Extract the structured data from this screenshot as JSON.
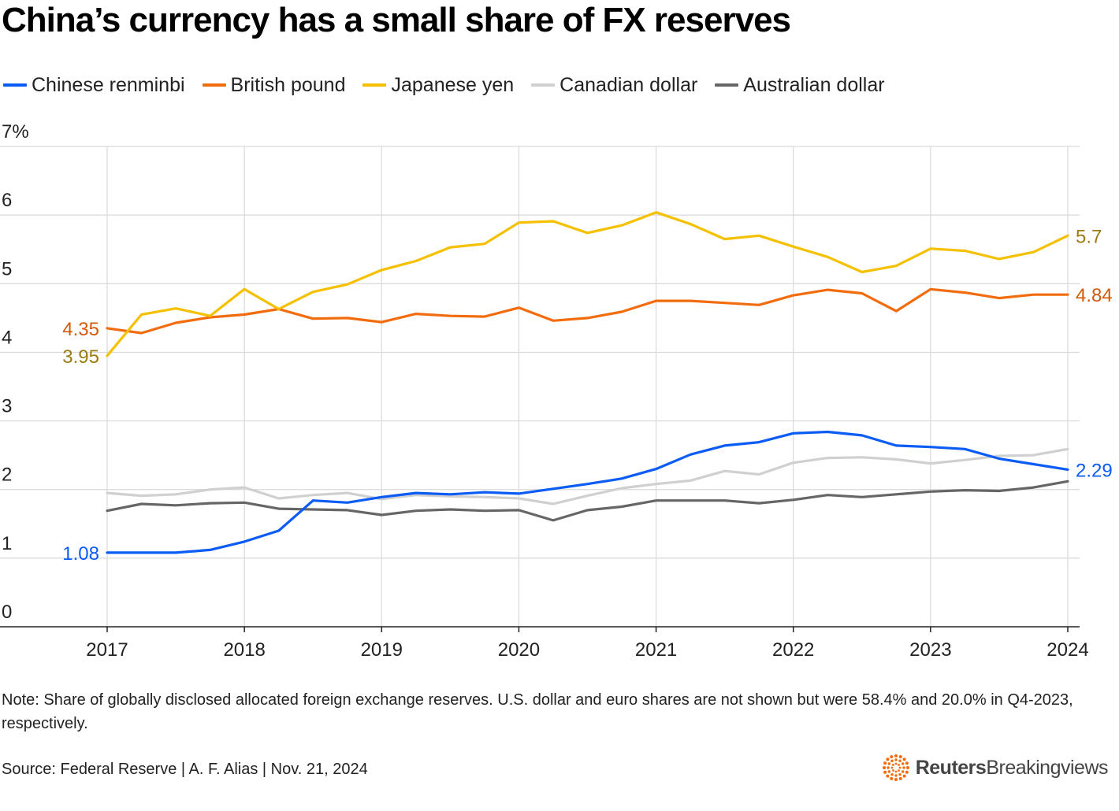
{
  "title": "China’s currency has a small share of FX reserves",
  "legend": [
    {
      "name": "Chinese renminbi",
      "color": "#0a5cf5"
    },
    {
      "name": "British pound",
      "color": "#f26c0d"
    },
    {
      "name": "Japanese yen",
      "color": "#f5c000"
    },
    {
      "name": "Canadian dollar",
      "color": "#d0d0d0"
    },
    {
      "name": "Australian dollar",
      "color": "#666666"
    }
  ],
  "chart_data": {
    "type": "line",
    "title": "China’s currency has a small share of FX reserves",
    "xlabel": "",
    "ylabel": "",
    "y_unit_label": "7%",
    "x_start": 2017,
    "x_step": 0.25,
    "xlim": [
      2017,
      2024
    ],
    "ylim": [
      0,
      7
    ],
    "x_ticks": [
      "2017",
      "2018",
      "2019",
      "2020",
      "2021",
      "2022",
      "2023",
      "2024"
    ],
    "y_ticks": [
      "0",
      "1",
      "2",
      "3",
      "4",
      "5",
      "6"
    ],
    "grid": true,
    "legend_position": "top-left",
    "series": [
      {
        "name": "Canadian dollar",
        "color": "#d0d0d0",
        "values": [
          1.95,
          1.91,
          1.93,
          2.0,
          2.03,
          1.87,
          1.92,
          1.95,
          1.86,
          1.92,
          1.9,
          1.89,
          1.87,
          1.79,
          1.91,
          2.02,
          2.08,
          2.13,
          2.27,
          2.22,
          2.39,
          2.46,
          2.47,
          2.44,
          2.38,
          2.43,
          2.49,
          2.5,
          2.59
        ]
      },
      {
        "name": "Australian dollar",
        "color": "#666666",
        "values": [
          1.69,
          1.79,
          1.77,
          1.8,
          1.81,
          1.72,
          1.71,
          1.7,
          1.63,
          1.69,
          1.71,
          1.69,
          1.7,
          1.55,
          1.7,
          1.75,
          1.84,
          1.84,
          1.84,
          1.8,
          1.85,
          1.92,
          1.89,
          1.93,
          1.97,
          1.99,
          1.98,
          2.03,
          2.12
        ]
      },
      {
        "name": "British pound",
        "color": "#f26c0d",
        "values": [
          4.35,
          4.28,
          4.43,
          4.51,
          4.55,
          4.63,
          4.49,
          4.5,
          4.44,
          4.56,
          4.53,
          4.52,
          4.65,
          4.46,
          4.5,
          4.59,
          4.75,
          4.75,
          4.72,
          4.69,
          4.83,
          4.91,
          4.86,
          4.6,
          4.92,
          4.87,
          4.79,
          4.84,
          4.84
        ]
      },
      {
        "name": "Japanese yen",
        "color": "#f5c000",
        "values": [
          3.95,
          4.55,
          4.64,
          4.53,
          4.92,
          4.63,
          4.88,
          4.99,
          5.2,
          5.33,
          5.53,
          5.58,
          5.89,
          5.91,
          5.74,
          5.85,
          6.04,
          5.87,
          5.65,
          5.7,
          5.54,
          5.39,
          5.17,
          5.26,
          5.51,
          5.48,
          5.36,
          5.46,
          5.7
        ]
      },
      {
        "name": "Chinese renminbi",
        "color": "#0a5cf5",
        "values": [
          1.08,
          1.08,
          1.08,
          1.12,
          1.24,
          1.4,
          1.84,
          1.81,
          1.89,
          1.95,
          1.93,
          1.96,
          1.94,
          2.01,
          2.08,
          2.16,
          2.3,
          2.51,
          2.64,
          2.69,
          2.82,
          2.84,
          2.79,
          2.64,
          2.62,
          2.59,
          2.45,
          2.37,
          2.29
        ]
      }
    ],
    "annotations": [
      {
        "series": "British pound",
        "position": "start",
        "text": "4.35",
        "color": "#d25a0a"
      },
      {
        "series": "Japanese yen",
        "position": "start",
        "text": "3.95",
        "color": "#9c7a12"
      },
      {
        "series": "Chinese renminbi",
        "position": "start",
        "text": "1.08",
        "color": "#0a5cf5"
      },
      {
        "series": "Japanese yen",
        "position": "end",
        "text": "5.7",
        "color": "#9c7a12"
      },
      {
        "series": "British pound",
        "position": "end",
        "text": "4.84",
        "color": "#d25a0a"
      },
      {
        "series": "Chinese renminbi",
        "position": "end",
        "text": "2.29",
        "color": "#0a5cf5"
      }
    ]
  },
  "note": "Note: Share of globally disclosed allocated foreign exchange reserves. U.S. dollar and euro shares are not shown but were 58.4% and 20.0% in Q4-2023, respectively.",
  "source": "Source: Federal Reserve | A. F. Alias | Nov. 21, 2024",
  "logo": {
    "brand": "Reuters",
    "product": "Breakingviews",
    "color": "#f26c0d"
  }
}
